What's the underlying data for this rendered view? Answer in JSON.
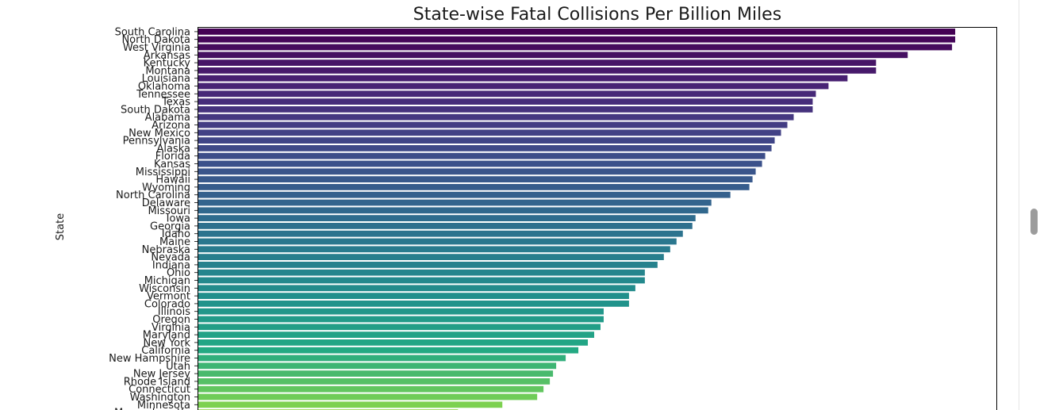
{
  "chart_data": {
    "type": "bar",
    "orientation": "horizontal",
    "title": "State-wise Fatal Collisions Per Billion Miles",
    "xlabel": "",
    "ylabel": "State",
    "xlim": [
      0,
      25.2
    ],
    "colormap": "viridis",
    "grid": false,
    "categories": [
      "South Carolina",
      "North Dakota",
      "West Virginia",
      "Arkansas",
      "Kentucky",
      "Montana",
      "Louisiana",
      "Oklahoma",
      "Tennessee",
      "Texas",
      "South Dakota",
      "Alabama",
      "Arizona",
      "New Mexico",
      "Pennsylvania",
      "Alaska",
      "Florida",
      "Kansas",
      "Mississippi",
      "Hawaii",
      "Wyoming",
      "North Carolina",
      "Delaware",
      "Missouri",
      "Iowa",
      "Georgia",
      "Idaho",
      "Maine",
      "Nebraska",
      "Nevada",
      "Indiana",
      "Ohio",
      "Michigan",
      "Wisconsin",
      "Vermont",
      "Colorado",
      "Illinois",
      "Oregon",
      "Virginia",
      "Maryland",
      "New York",
      "California",
      "New Hampshire",
      "Utah",
      "New Jersey",
      "Rhode Island",
      "Connecticut",
      "Washington",
      "Minnesota",
      "Massachusetts"
    ],
    "values": [
      23.9,
      23.9,
      23.8,
      22.4,
      21.4,
      21.4,
      20.5,
      19.9,
      19.5,
      19.4,
      19.4,
      18.8,
      18.6,
      18.4,
      18.2,
      18.1,
      17.9,
      17.8,
      17.6,
      17.5,
      17.4,
      16.8,
      16.2,
      16.1,
      15.7,
      15.6,
      15.3,
      15.1,
      14.9,
      14.7,
      14.5,
      14.1,
      14.1,
      13.8,
      13.6,
      13.6,
      12.8,
      12.8,
      12.7,
      12.5,
      12.3,
      12.0,
      11.6,
      11.3,
      11.2,
      11.1,
      10.9,
      10.7,
      9.6,
      8.2
    ]
  }
}
